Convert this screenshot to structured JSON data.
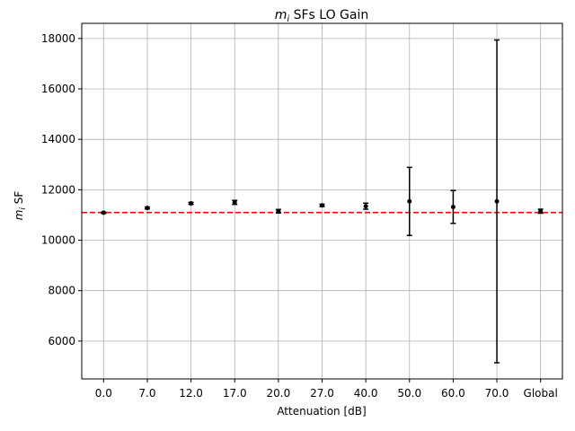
{
  "chart_data": {
    "type": "scatter",
    "title_math": "m",
    "title_sub": "i",
    "title_rest": " SFs LO Gain",
    "xlabel": "Attenuation [dB]",
    "ylabel_math": "m",
    "ylabel_sub": "i",
    "ylabel_rest": " SF",
    "categories": [
      "0.0",
      "7.0",
      "12.0",
      "17.0",
      "20.0",
      "27.0",
      "40.0",
      "50.0",
      "60.0",
      "70.0",
      "Global"
    ],
    "values": [
      11090,
      11280,
      11460,
      11500,
      11150,
      11380,
      11350,
      11540,
      11320,
      11540,
      11150
    ],
    "errors": [
      25,
      40,
      40,
      80,
      70,
      45,
      120,
      1350,
      650,
      6400,
      80
    ],
    "reference_line": 11100,
    "ylim": [
      4500,
      18600
    ],
    "yticks": [
      6000,
      8000,
      10000,
      12000,
      14000,
      16000,
      18000
    ],
    "grid": true,
    "colors": {
      "points": "#000000",
      "reference": "#ff0000",
      "grid": "#b0b0b0"
    }
  }
}
